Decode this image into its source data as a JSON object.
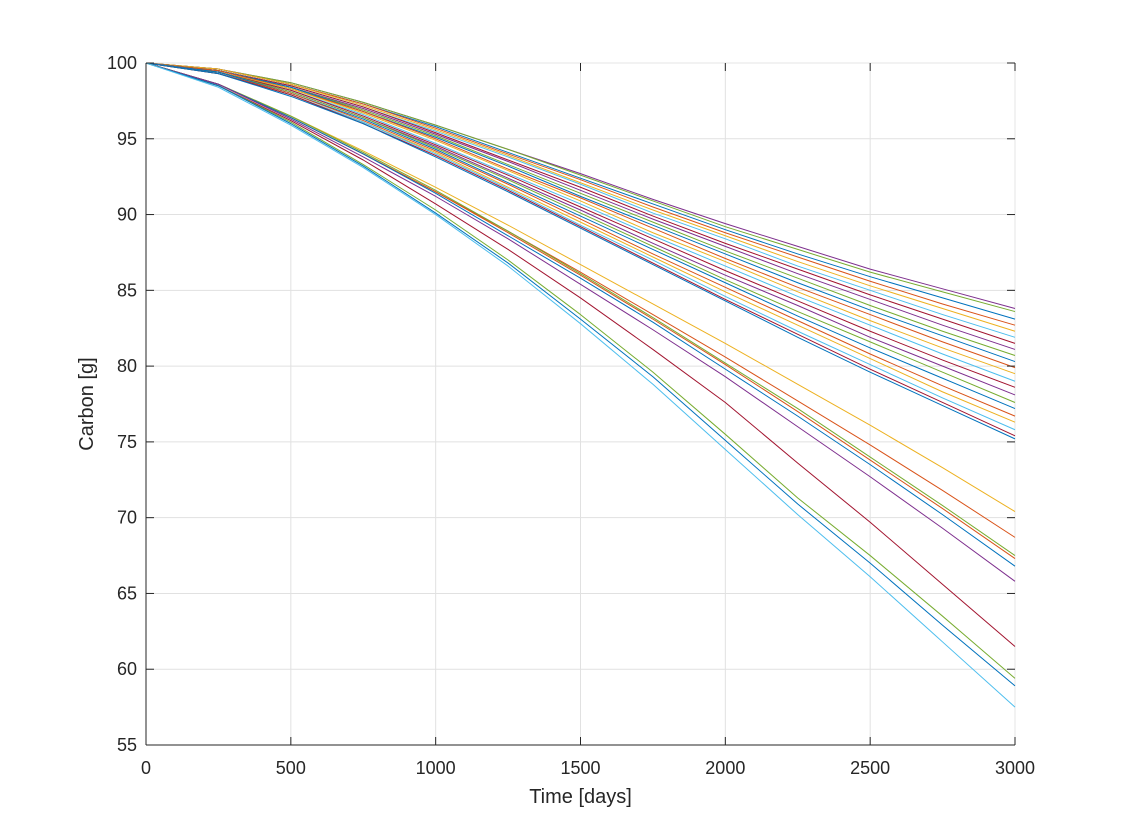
{
  "chart_data": {
    "type": "line",
    "title": "",
    "xlabel": "Time [days]",
    "ylabel": "Carbon [g]",
    "xlim": [
      0,
      3000
    ],
    "ylim": [
      55,
      100
    ],
    "xticks": [
      0,
      500,
      1000,
      1500,
      2000,
      2500,
      3000
    ],
    "yticks": [
      55,
      60,
      65,
      70,
      75,
      80,
      85,
      90,
      95,
      100
    ],
    "xtick_labels": [
      "0",
      "500",
      "1000",
      "1500",
      "2000",
      "2500",
      "3000"
    ],
    "ytick_labels": [
      "55",
      "60",
      "65",
      "70",
      "75",
      "80",
      "85",
      "90",
      "95",
      "100"
    ],
    "grid": true,
    "legend": "none",
    "x": [
      0,
      250,
      500,
      750,
      1000,
      1250,
      1500,
      1750,
      2000,
      2250,
      2500,
      2750,
      3000
    ],
    "series": [
      {
        "color": "#7E2F8E",
        "values": [
          100,
          99.6,
          98.7,
          97.4,
          95.9,
          94.3,
          92.7,
          91.0,
          89.4,
          87.9,
          86.4,
          85.1,
          83.8
        ]
      },
      {
        "color": "#77AC30",
        "values": [
          100,
          99.6,
          98.7,
          97.4,
          95.9,
          94.3,
          92.6,
          90.9,
          89.2,
          87.7,
          86.2,
          84.9,
          83.6
        ]
      },
      {
        "color": "#0072BD",
        "values": [
          100,
          99.6,
          98.6,
          97.3,
          95.8,
          94.1,
          92.4,
          90.7,
          89.0,
          87.4,
          85.9,
          84.5,
          83.1
        ]
      },
      {
        "color": "#D95319",
        "values": [
          100,
          99.6,
          98.6,
          97.3,
          95.7,
          94.0,
          92.3,
          90.5,
          88.8,
          87.2,
          85.6,
          84.1,
          82.7
        ]
      },
      {
        "color": "#EDB120",
        "values": [
          100,
          99.6,
          98.6,
          97.2,
          95.6,
          93.9,
          92.1,
          90.3,
          88.6,
          86.9,
          85.3,
          83.8,
          82.3
        ]
      },
      {
        "color": "#4DBEEE",
        "values": [
          100,
          99.5,
          98.5,
          97.1,
          95.5,
          93.8,
          92.0,
          90.1,
          88.4,
          86.6,
          85.0,
          83.4,
          81.9
        ]
      },
      {
        "color": "#A2142F",
        "values": [
          100,
          99.5,
          98.5,
          97.1,
          95.4,
          93.6,
          91.8,
          89.9,
          88.1,
          86.4,
          84.7,
          83.1,
          81.5
        ]
      },
      {
        "color": "#7E2F8E",
        "values": [
          100,
          99.5,
          98.4,
          97.0,
          95.3,
          93.5,
          91.6,
          89.7,
          87.9,
          86.1,
          84.4,
          82.7,
          81.1
        ]
      },
      {
        "color": "#77AC30",
        "values": [
          100,
          99.5,
          98.4,
          96.9,
          95.2,
          93.3,
          91.4,
          89.5,
          87.6,
          85.8,
          84.0,
          82.3,
          80.7
        ]
      },
      {
        "color": "#0072BD",
        "values": [
          100,
          99.5,
          98.4,
          96.8,
          95.1,
          93.2,
          91.2,
          89.3,
          87.4,
          85.5,
          83.7,
          82.0,
          80.3
        ]
      },
      {
        "color": "#D95319",
        "values": [
          100,
          99.5,
          98.3,
          96.8,
          95.0,
          93.0,
          91.1,
          89.1,
          87.1,
          85.2,
          83.4,
          81.6,
          79.9
        ]
      },
      {
        "color": "#EDB120",
        "values": [
          100,
          99.4,
          98.3,
          96.7,
          94.9,
          92.9,
          90.9,
          88.8,
          86.9,
          84.9,
          83.0,
          81.2,
          79.5
        ]
      },
      {
        "color": "#4DBEEE",
        "values": [
          100,
          99.4,
          98.2,
          96.6,
          94.7,
          92.7,
          90.7,
          88.6,
          86.6,
          84.6,
          82.7,
          80.8,
          79.0
        ]
      },
      {
        "color": "#A2142F",
        "values": [
          100,
          99.4,
          98.2,
          96.5,
          94.6,
          92.6,
          90.5,
          88.4,
          86.3,
          84.3,
          82.3,
          80.4,
          78.6
        ]
      },
      {
        "color": "#7E2F8E",
        "values": [
          100,
          99.4,
          98.1,
          96.4,
          94.5,
          92.4,
          90.3,
          88.1,
          86.0,
          84.0,
          81.9,
          80.0,
          78.1
        ]
      },
      {
        "color": "#77AC30",
        "values": [
          100,
          99.4,
          98.1,
          96.4,
          94.4,
          92.3,
          90.1,
          87.9,
          85.7,
          83.6,
          81.6,
          79.6,
          77.6
        ]
      },
      {
        "color": "#0072BD",
        "values": [
          100,
          99.4,
          98.0,
          96.3,
          94.3,
          92.1,
          89.9,
          87.7,
          85.5,
          83.3,
          81.2,
          79.2,
          77.2
        ]
      },
      {
        "color": "#D95319",
        "values": [
          100,
          99.3,
          98.0,
          96.2,
          94.2,
          92.0,
          89.7,
          87.4,
          85.2,
          83.0,
          80.8,
          78.7,
          76.7
        ]
      },
      {
        "color": "#EDB120",
        "values": [
          100,
          99.3,
          97.9,
          96.1,
          94.1,
          91.8,
          89.5,
          87.2,
          84.9,
          82.7,
          80.5,
          78.3,
          76.3
        ]
      },
      {
        "color": "#4DBEEE",
        "values": [
          100,
          99.3,
          97.9,
          96.1,
          94.0,
          91.7,
          89.3,
          87.0,
          84.6,
          82.3,
          80.1,
          77.9,
          75.8
        ]
      },
      {
        "color": "#A2142F",
        "values": [
          100,
          99.3,
          97.9,
          96.0,
          93.9,
          91.6,
          89.2,
          86.8,
          84.4,
          82.1,
          79.8,
          77.6,
          75.4
        ]
      },
      {
        "color": "#0072BD",
        "values": [
          100,
          99.3,
          97.8,
          96.0,
          93.8,
          91.5,
          89.1,
          86.7,
          84.3,
          81.9,
          79.6,
          77.4,
          75.2
        ]
      },
      {
        "color": "#EDB120",
        "values": [
          100,
          98.6,
          96.5,
          94.2,
          91.8,
          89.3,
          86.7,
          84.1,
          81.5,
          78.8,
          76.1,
          73.3,
          70.4
        ]
      },
      {
        "color": "#D95319",
        "values": [
          100,
          98.6,
          96.4,
          94.0,
          91.5,
          88.9,
          86.2,
          83.4,
          80.6,
          77.7,
          74.8,
          71.8,
          68.7
        ]
      },
      {
        "color": "#77AC30",
        "values": [
          100,
          98.6,
          96.5,
          94.1,
          91.6,
          88.9,
          86.1,
          83.2,
          80.2,
          77.2,
          74.0,
          70.8,
          67.5
        ]
      },
      {
        "color": "#D95319",
        "values": [
          100,
          98.6,
          96.4,
          94.0,
          91.5,
          88.8,
          86.0,
          83.1,
          80.1,
          77.0,
          73.8,
          70.6,
          67.3
        ]
      },
      {
        "color": "#0072BD",
        "values": [
          100,
          98.6,
          96.4,
          94.0,
          91.4,
          88.6,
          85.8,
          82.9,
          79.8,
          76.7,
          73.5,
          70.2,
          66.8
        ]
      },
      {
        "color": "#7E2F8E",
        "values": [
          100,
          98.6,
          96.3,
          93.8,
          91.2,
          88.4,
          85.4,
          82.4,
          79.3,
          76.0,
          72.7,
          69.3,
          65.8
        ]
      },
      {
        "color": "#A2142F",
        "values": [
          100,
          98.5,
          96.2,
          93.6,
          90.7,
          87.7,
          84.5,
          81.1,
          77.6,
          73.6,
          69.7,
          65.6,
          61.5
        ]
      },
      {
        "color": "#77AC30",
        "values": [
          100,
          98.5,
          96.1,
          93.3,
          90.3,
          87.0,
          83.4,
          79.6,
          75.5,
          71.3,
          67.5,
          63.5,
          59.4
        ]
      },
      {
        "color": "#0072BD",
        "values": [
          100,
          98.5,
          96.0,
          93.2,
          90.1,
          86.8,
          83.1,
          79.3,
          75.1,
          70.9,
          67.0,
          62.9,
          58.9
        ]
      },
      {
        "color": "#4DBEEE",
        "values": [
          100,
          98.4,
          95.9,
          93.1,
          90.0,
          86.6,
          82.8,
          78.8,
          74.5,
          70.2,
          66.1,
          61.8,
          57.5
        ]
      }
    ]
  }
}
